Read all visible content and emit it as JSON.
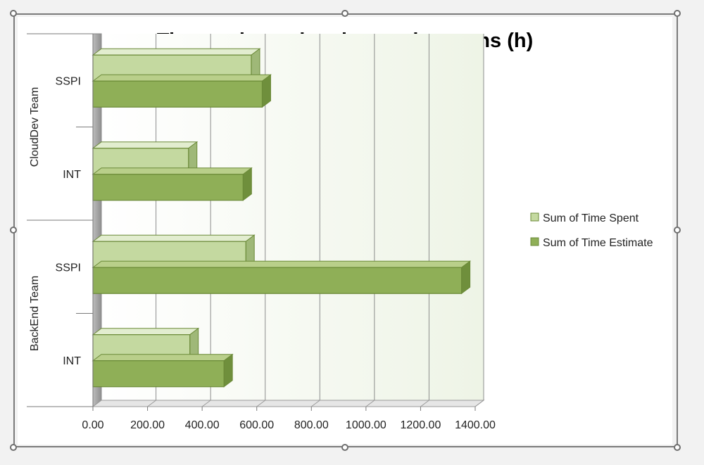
{
  "chart_data": {
    "type": "bar",
    "orientation": "horizontal",
    "title": "Time estimated and spent by teams (h)",
    "groups": [
      {
        "name": "CloudDev Team",
        "categories": [
          "SSPI",
          "INT"
        ]
      },
      {
        "name": "BackEnd Team",
        "categories": [
          "SSPI",
          "INT"
        ]
      }
    ],
    "categories": [
      "CloudDev Team / SSPI",
      "CloudDev Team / INT",
      "BackEnd Team / SSPI",
      "BackEnd Team / INT"
    ],
    "series": [
      {
        "name": "Sum of Time Spent",
        "values": [
          580,
          350,
          560,
          355
        ],
        "color": "#c4d9a0"
      },
      {
        "name": "Sum of Time Estimate",
        "values": [
          620,
          550,
          1350,
          480
        ],
        "color": "#8faf57"
      }
    ],
    "x_ticks": [
      "0.00",
      "200.00",
      "400.00",
      "600.00",
      "800.00",
      "1000.00",
      "1200.00",
      "1400.00"
    ],
    "xlim": [
      0,
      1400
    ],
    "grid": true,
    "legend_position": "right",
    "style": "3d clustered bar"
  }
}
